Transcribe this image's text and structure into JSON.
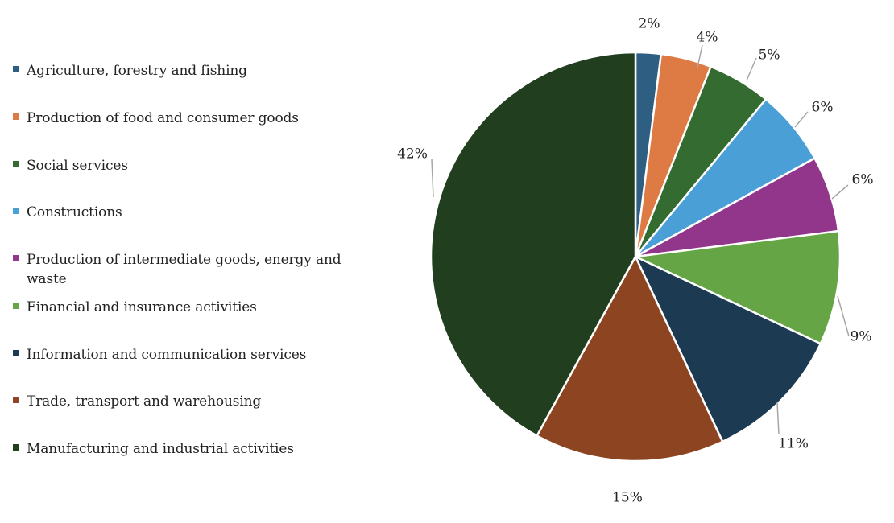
{
  "chart_data": {
    "type": "pie",
    "title": "",
    "legend_position": "left",
    "slices": [
      {
        "label": "Agriculture, forestry and fishing",
        "value": 2,
        "value_label": "2%",
        "color": "#2e5f82"
      },
      {
        "label": "Production of food and consumer goods",
        "value": 4,
        "value_label": "4%",
        "color": "#de7a43"
      },
      {
        "label": "Social services",
        "value": 5,
        "value_label": "5%",
        "color": "#346b30"
      },
      {
        "label": "Constructions",
        "value": 6,
        "value_label": "6%",
        "color": "#4a9fd6"
      },
      {
        "label": "Production of intermediate goods, energy and waste",
        "value": 6,
        "value_label": "6%",
        "color": "#92368c"
      },
      {
        "label": "Financial and insurance activities",
        "value": 9,
        "value_label": "9%",
        "color": "#66a545"
      },
      {
        "label": "Information and communication services",
        "value": 11,
        "value_label": "11%",
        "color": "#1c3a52"
      },
      {
        "label": "Trade, transport and warehousing",
        "value": 15,
        "value_label": "15%",
        "color": "#8d4420"
      },
      {
        "label": "Manufacturing and industrial activities",
        "value": 42,
        "value_label": "42%",
        "color": "#213f1e"
      }
    ]
  }
}
